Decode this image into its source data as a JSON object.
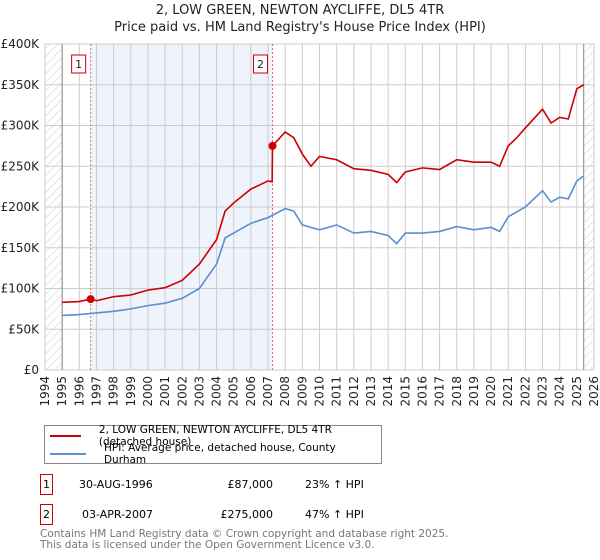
{
  "title": "2, LOW GREEN, NEWTON AYCLIFFE, DL5 4TR",
  "subtitle": "Price paid vs. HM Land Registry's House Price Index (HPI)",
  "chart_data": {
    "type": "line",
    "xlim": [
      1994,
      2026
    ],
    "ylim": [
      0,
      400000
    ],
    "x_ticks": [
      "1994",
      "1995",
      "1996",
      "1997",
      "1998",
      "1999",
      "2000",
      "2001",
      "2002",
      "2003",
      "2004",
      "2005",
      "2006",
      "2007",
      "2008",
      "2009",
      "2010",
      "2011",
      "2012",
      "2013",
      "2014",
      "2015",
      "2016",
      "2017",
      "2018",
      "2019",
      "2020",
      "2021",
      "2022",
      "2023",
      "2024",
      "2025",
      "2026"
    ],
    "y_ticks": [
      {
        "v": 0,
        "label": "£0"
      },
      {
        "v": 50000,
        "label": "£50K"
      },
      {
        "v": 100000,
        "label": "£100K"
      },
      {
        "v": 150000,
        "label": "£150K"
      },
      {
        "v": 200000,
        "label": "£200K"
      },
      {
        "v": 250000,
        "label": "£250K"
      },
      {
        "v": 300000,
        "label": "£300K"
      },
      {
        "v": 350000,
        "label": "£350K"
      },
      {
        "v": 400000,
        "label": "£400K"
      }
    ],
    "series": [
      {
        "name": "2, LOW GREEN, NEWTON AYCLIFFE, DL5 4TR (detached house)",
        "color": "#cc0000",
        "x": [
          1995,
          1996,
          1996.66,
          1997,
          1998,
          1999,
          2000,
          2001,
          2002,
          2003,
          2004,
          2004.5,
          2005,
          2006,
          2007,
          2007.24,
          2007.26,
          2008,
          2008.5,
          2009,
          2009.5,
          2010,
          2011,
          2012,
          2013,
          2014,
          2014.5,
          2015,
          2016,
          2017,
          2017.5,
          2018,
          2019,
          2020,
          2020.5,
          2021,
          2021.5,
          2022,
          2023,
          2023.5,
          2024,
          2024.5,
          2025,
          2025.4
        ],
        "y": [
          83000,
          84000,
          87000,
          85000,
          90000,
          92000,
          98000,
          101000,
          110000,
          130000,
          160000,
          195000,
          205000,
          222000,
          232000,
          231000,
          275000,
          292000,
          285000,
          265000,
          250000,
          262000,
          258000,
          247000,
          245000,
          240000,
          230000,
          243000,
          248000,
          246000,
          252000,
          258000,
          255000,
          255000,
          250000,
          275000,
          285000,
          297000,
          320000,
          303000,
          310000,
          308000,
          345000,
          350000
        ]
      },
      {
        "name": "HPI: Average price, detached house, County Durham",
        "color": "#5b8fd0",
        "x": [
          1995,
          1996,
          1997,
          1998,
          1999,
          2000,
          2001,
          2002,
          2003,
          2004,
          2004.5,
          2005,
          2006,
          2007,
          2008,
          2008.5,
          2009,
          2010,
          2011,
          2012,
          2013,
          2014,
          2014.5,
          2015,
          2016,
          2017,
          2018,
          2019,
          2020,
          2020.5,
          2021,
          2022,
          2023,
          2023.5,
          2024,
          2024.5,
          2025,
          2025.4
        ],
        "y": [
          67000,
          68000,
          70000,
          72000,
          75000,
          79000,
          82000,
          88000,
          100000,
          130000,
          162000,
          168000,
          180000,
          187000,
          198000,
          195000,
          178000,
          172000,
          178000,
          168000,
          170000,
          165000,
          155000,
          168000,
          168000,
          170000,
          176000,
          172000,
          175000,
          170000,
          188000,
          200000,
          220000,
          206000,
          212000,
          210000,
          232000,
          238000
        ]
      }
    ],
    "annotations": [
      {
        "label": "1",
        "x": 1996.66,
        "y": 87000
      },
      {
        "label": "2",
        "x": 2007.26,
        "y": 275000
      }
    ]
  },
  "legend": [
    "2, LOW GREEN, NEWTON AYCLIFFE, DL5 4TR (detached house)",
    "HPI: Average price, detached house, County Durham"
  ],
  "transactions": [
    {
      "n": "1",
      "date": "30-AUG-1996",
      "price": "£87,000",
      "hpi": "23% ↑ HPI"
    },
    {
      "n": "2",
      "date": "03-APR-2007",
      "price": "£275,000",
      "hpi": "47% ↑ HPI"
    }
  ],
  "footer": [
    "Contains HM Land Registry data © Crown copyright and database right 2025.",
    "This data is licensed under the Open Government Licence v3.0."
  ]
}
